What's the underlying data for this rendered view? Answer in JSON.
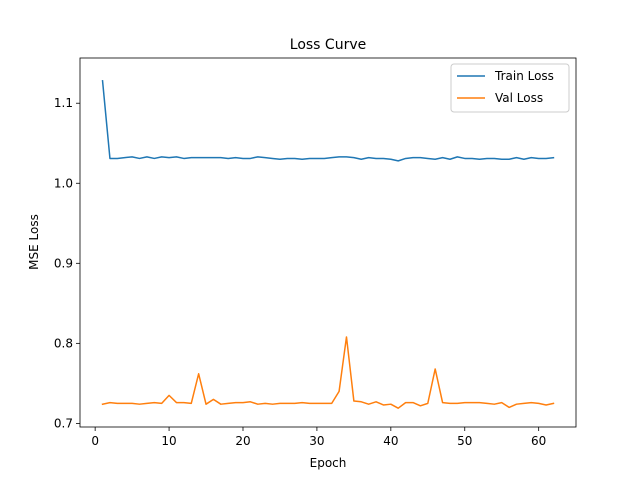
{
  "chart_data": {
    "type": "line",
    "title": "Loss Curve",
    "xlabel": "Epoch",
    "ylabel": "MSE Loss",
    "xlim": [
      -2.05,
      65.05
    ],
    "ylim": [
      0.6955,
      1.1565
    ],
    "xticks": [
      0,
      10,
      20,
      30,
      40,
      50,
      60
    ],
    "yticks": [
      0.7,
      0.8,
      0.9,
      1.0,
      1.1
    ],
    "ytick_labels": [
      "0.7",
      "0.8",
      "0.9",
      "1.0",
      "1.1"
    ],
    "legend_position": "top-right",
    "x": [
      1,
      2,
      3,
      4,
      5,
      6,
      7,
      8,
      9,
      10,
      11,
      12,
      13,
      14,
      15,
      16,
      17,
      18,
      19,
      20,
      21,
      22,
      23,
      24,
      25,
      26,
      27,
      28,
      29,
      30,
      31,
      32,
      33,
      34,
      35,
      36,
      37,
      38,
      39,
      40,
      41,
      42,
      43,
      44,
      45,
      46,
      47,
      48,
      49,
      50,
      51,
      52,
      53,
      54,
      55,
      56,
      57,
      58,
      59,
      60,
      61,
      62
    ],
    "series": [
      {
        "name": "Train Loss",
        "color": "#1f77b4",
        "values": [
          1.128,
          1.031,
          1.031,
          1.032,
          1.033,
          1.031,
          1.033,
          1.031,
          1.033,
          1.032,
          1.033,
          1.031,
          1.032,
          1.032,
          1.032,
          1.032,
          1.032,
          1.031,
          1.032,
          1.031,
          1.031,
          1.033,
          1.032,
          1.031,
          1.03,
          1.031,
          1.031,
          1.03,
          1.031,
          1.031,
          1.031,
          1.032,
          1.033,
          1.033,
          1.032,
          1.03,
          1.032,
          1.031,
          1.031,
          1.03,
          1.028,
          1.031,
          1.032,
          1.032,
          1.031,
          1.03,
          1.032,
          1.03,
          1.033,
          1.031,
          1.031,
          1.03,
          1.031,
          1.031,
          1.03,
          1.03,
          1.032,
          1.03,
          1.032,
          1.031,
          1.031,
          1.032
        ]
      },
      {
        "name": "Val Loss",
        "color": "#ff7f0e",
        "values": [
          0.724,
          0.726,
          0.725,
          0.725,
          0.725,
          0.724,
          0.725,
          0.726,
          0.725,
          0.735,
          0.726,
          0.726,
          0.725,
          0.762,
          0.724,
          0.73,
          0.724,
          0.725,
          0.726,
          0.726,
          0.727,
          0.724,
          0.725,
          0.724,
          0.725,
          0.725,
          0.725,
          0.726,
          0.725,
          0.725,
          0.725,
          0.725,
          0.74,
          0.808,
          0.728,
          0.727,
          0.724,
          0.727,
          0.723,
          0.724,
          0.719,
          0.726,
          0.726,
          0.722,
          0.725,
          0.768,
          0.726,
          0.725,
          0.725,
          0.726,
          0.726,
          0.726,
          0.725,
          0.724,
          0.726,
          0.72,
          0.724,
          0.725,
          0.726,
          0.725,
          0.723,
          0.725
        ]
      }
    ]
  }
}
